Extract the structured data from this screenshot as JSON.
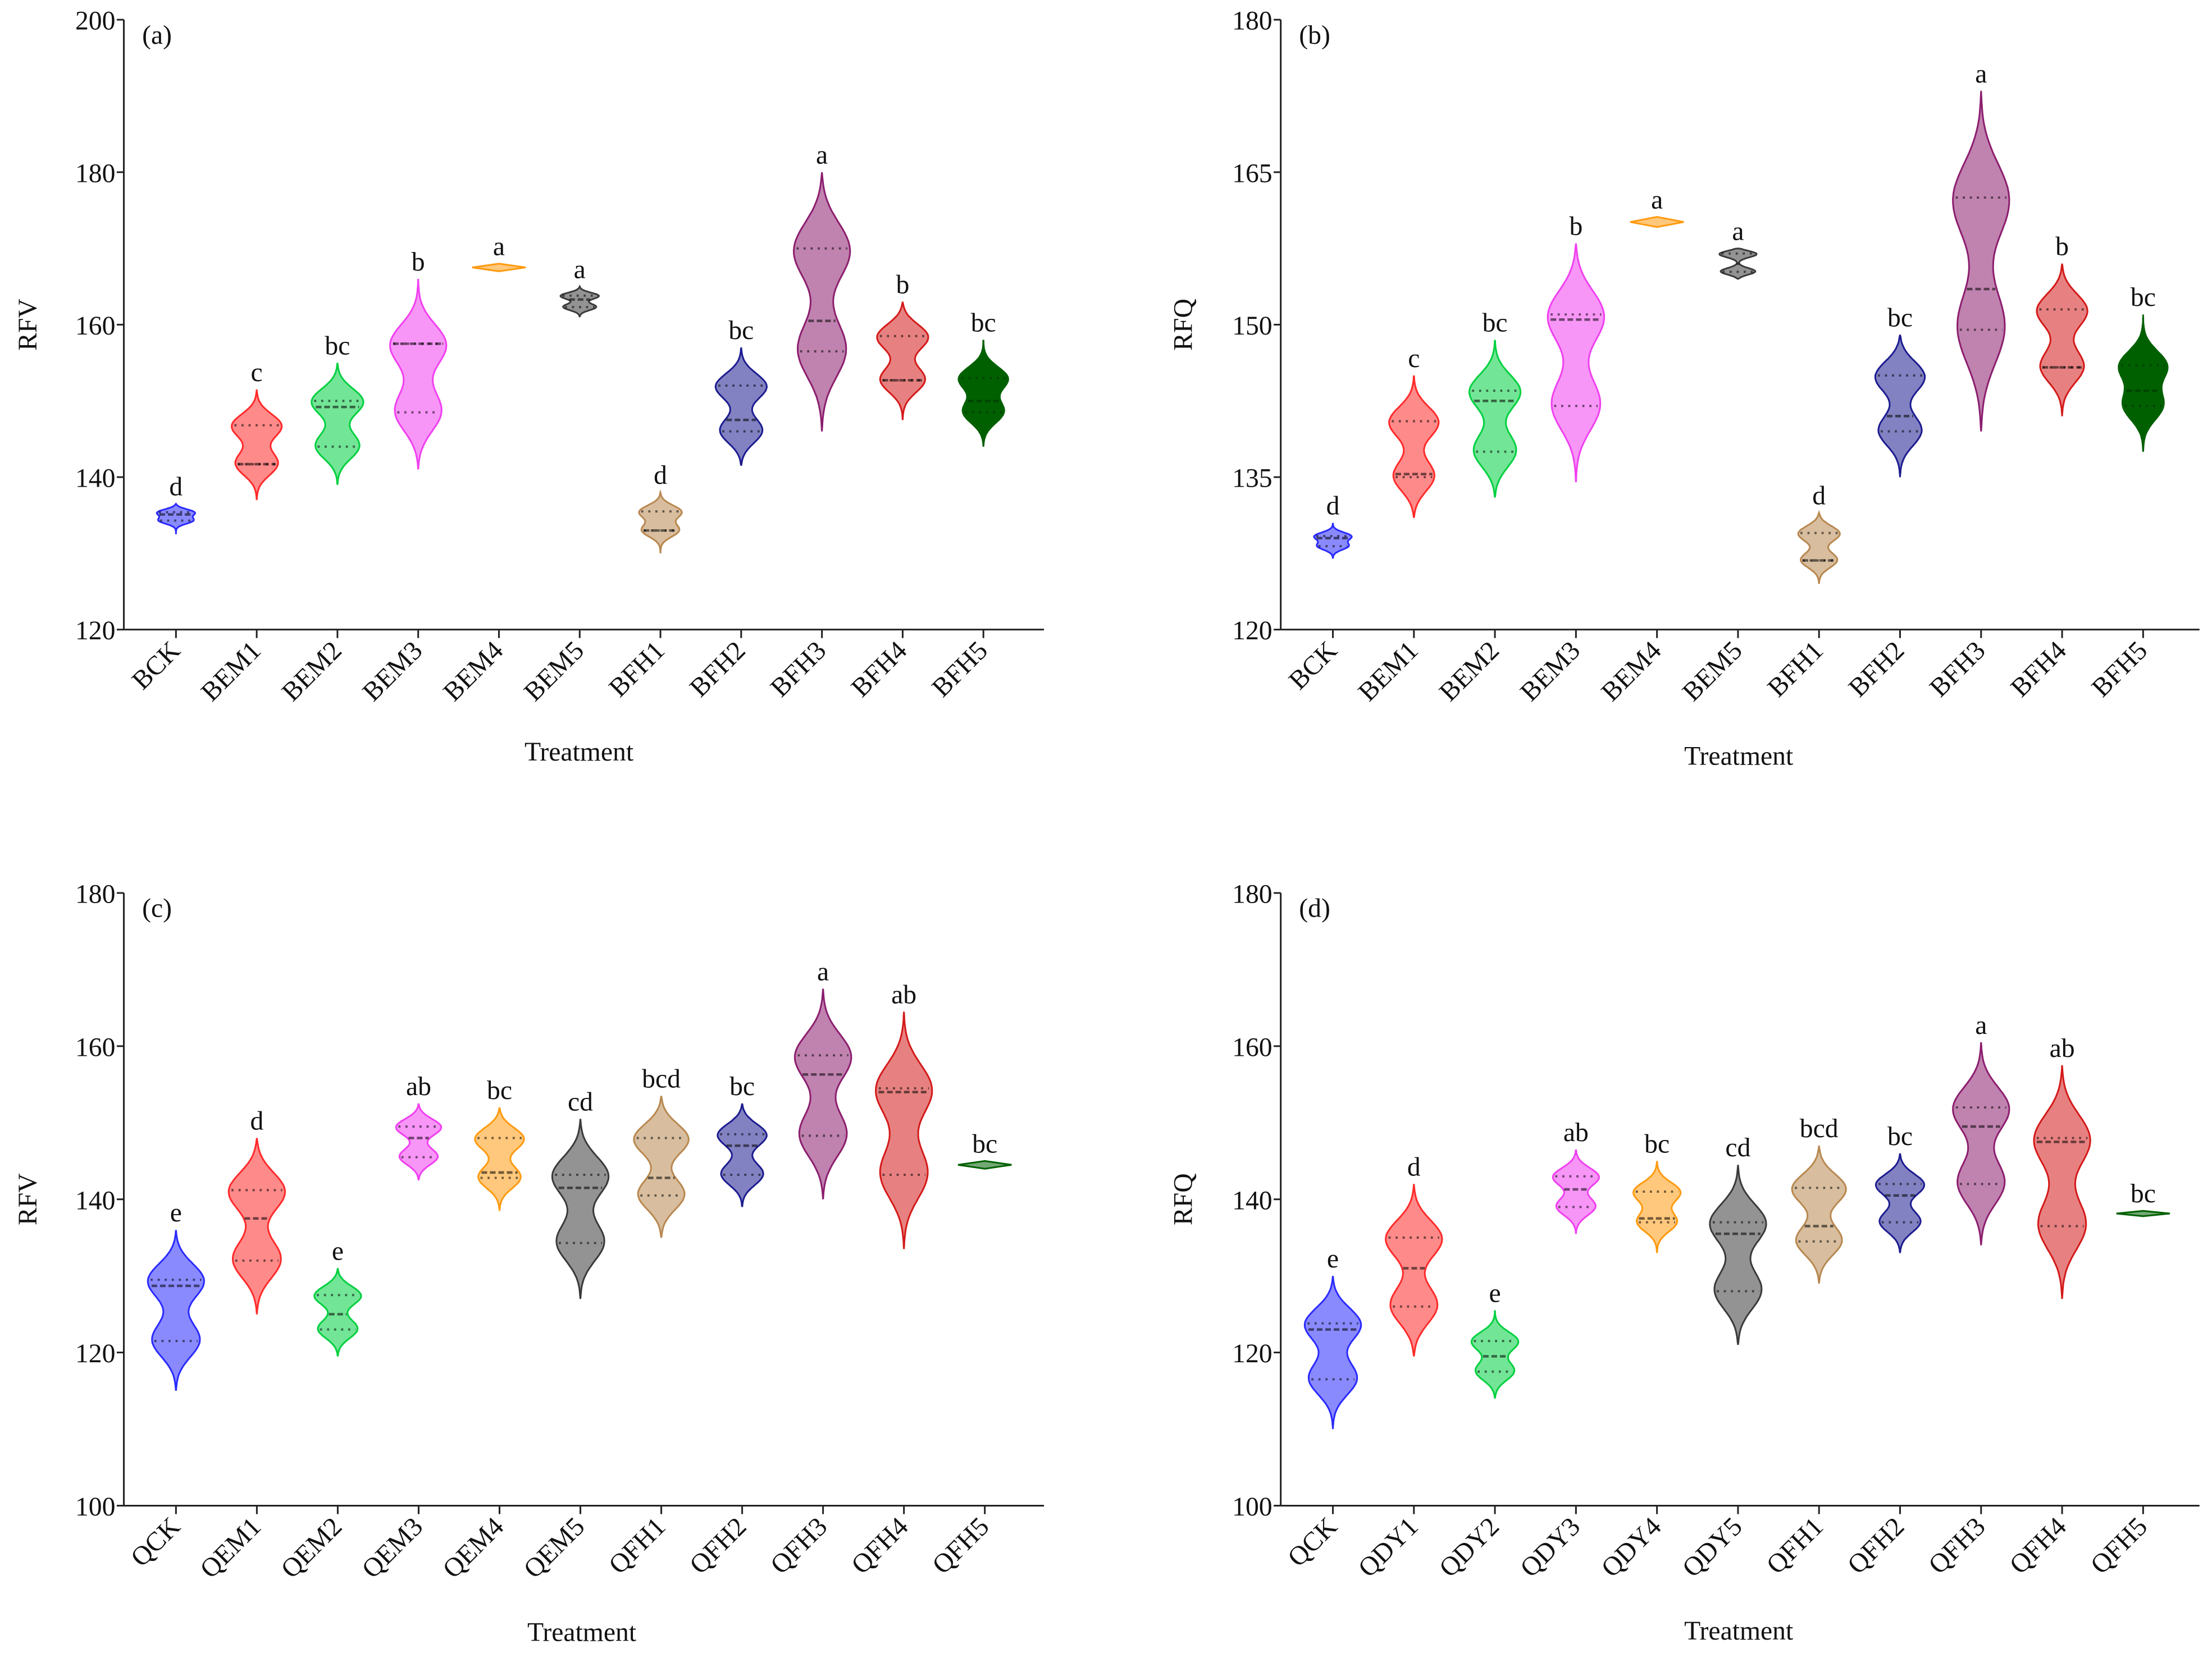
{
  "chart_data": [
    {
      "type": "violin",
      "panel_label": "(a)",
      "ylabel": "RFV",
      "xlabel": "Treatment",
      "ylim": [
        120,
        200
      ],
      "yticks": [
        "120",
        "140",
        "160",
        "180",
        "200"
      ],
      "categories": [
        "BCK",
        "BEM1",
        "BEM2",
        "BEM3",
        "BEM4",
        "BEM5",
        "BFH1",
        "BFH2",
        "BFH3",
        "BFH4",
        "BFH5"
      ],
      "letters": [
        "d",
        "c",
        "bc",
        "b",
        "a",
        "a",
        "d",
        "bc",
        "a",
        "b",
        "bc"
      ],
      "violins": [
        {
          "min": 132.5,
          "max": 136.5,
          "q1": 134.3,
          "median": 135.1,
          "q3": 135.4
        },
        {
          "min": 137,
          "max": 151.5,
          "q1": 141.7,
          "median": 141.7,
          "q3": 146.8
        },
        {
          "min": 139,
          "max": 155,
          "q1": 144,
          "median": 149.2,
          "q3": 150
        },
        {
          "min": 141,
          "max": 166,
          "q1": 148.5,
          "median": 157.5,
          "q3": 157.5
        },
        {
          "min": 167,
          "max": 168,
          "q1": 167.5,
          "median": 167.5,
          "q3": 167.5
        },
        {
          "min": 161,
          "max": 165,
          "q1": 162.3,
          "median": 163.3,
          "q3": 163.8
        },
        {
          "min": 130,
          "max": 138,
          "q1": 133,
          "median": 133,
          "q3": 135.5
        },
        {
          "min": 141.5,
          "max": 157,
          "q1": 146,
          "median": 147.5,
          "q3": 152
        },
        {
          "min": 146,
          "max": 180,
          "q1": 156.5,
          "median": 160.5,
          "q3": 170
        },
        {
          "min": 147.5,
          "max": 163,
          "q1": 152.7,
          "median": 152.7,
          "q3": 158.5
        },
        {
          "min": 144,
          "max": 158,
          "q1": 148.5,
          "median": 150,
          "q3": 153
        }
      ]
    },
    {
      "type": "violin",
      "panel_label": "(b)",
      "ylabel": "RFQ",
      "xlabel": "Treatment",
      "ylim": [
        120,
        180
      ],
      "yticks": [
        "120",
        "135",
        "150",
        "165",
        "180"
      ],
      "categories": [
        "BCK",
        "BEM1",
        "BEM2",
        "BEM3",
        "BEM4",
        "BEM5",
        "BFH1",
        "BFH2",
        "BFH3",
        "BFH4",
        "BFH5"
      ],
      "letters": [
        "d",
        "c",
        "bc",
        "b",
        "a",
        "a",
        "d",
        "bc",
        "a",
        "b",
        "bc"
      ],
      "violins": [
        {
          "min": 127,
          "max": 130.5,
          "q1": 128.2,
          "median": 129,
          "q3": 129.2
        },
        {
          "min": 131,
          "max": 145,
          "q1": 135,
          "median": 135.3,
          "q3": 140.5
        },
        {
          "min": 133,
          "max": 148.5,
          "q1": 137.5,
          "median": 142.5,
          "q3": 143.5
        },
        {
          "min": 134.5,
          "max": 158,
          "q1": 142,
          "median": 150.5,
          "q3": 151
        },
        {
          "min": 159.6,
          "max": 160.6,
          "q1": 160.1,
          "median": 160.1,
          "q3": 160.1
        },
        {
          "min": 154.5,
          "max": 157.5,
          "q1": 155.2,
          "median": 156,
          "q3": 157
        },
        {
          "min": 124.5,
          "max": 131.5,
          "q1": 126.8,
          "median": 126.8,
          "q3": 129.5
        },
        {
          "min": 135,
          "max": 149,
          "q1": 139.5,
          "median": 141,
          "q3": 145
        },
        {
          "min": 139.5,
          "max": 173,
          "q1": 149.5,
          "median": 153.5,
          "q3": 162.5
        },
        {
          "min": 141,
          "max": 156,
          "q1": 145.8,
          "median": 145.8,
          "q3": 151.5
        },
        {
          "min": 137.5,
          "max": 151,
          "q1": 142,
          "median": 143.5,
          "q3": 146
        }
      ]
    },
    {
      "type": "violin",
      "panel_label": "(c)",
      "ylabel": "RFV",
      "xlabel": "Treatment",
      "ylim": [
        100,
        180
      ],
      "yticks": [
        "100",
        "120",
        "140",
        "160",
        "180"
      ],
      "categories": [
        "QCK",
        "QEM1",
        "QEM2",
        "QEM3",
        "QEM4",
        "QEM5",
        "QFH1",
        "QFH2",
        "QFH3",
        "QFH4",
        "QFH5"
      ],
      "letters": [
        "e",
        "d",
        "e",
        "ab",
        "bc",
        "cd",
        "bcd",
        "bc",
        "a",
        "ab",
        "bc"
      ],
      "violins": [
        {
          "min": 115,
          "max": 136,
          "q1": 121.5,
          "median": 128.7,
          "q3": 129.5
        },
        {
          "min": 125,
          "max": 148,
          "q1": 132,
          "median": 137.5,
          "q3": 141.2
        },
        {
          "min": 119.5,
          "max": 131,
          "q1": 123,
          "median": 125,
          "q3": 127.5
        },
        {
          "min": 142.5,
          "max": 152.5,
          "q1": 145.5,
          "median": 148,
          "q3": 149.5
        },
        {
          "min": 138.5,
          "max": 152,
          "q1": 142.8,
          "median": 143.5,
          "q3": 148
        },
        {
          "min": 127,
          "max": 150.5,
          "q1": 134.3,
          "median": 141.5,
          "q3": 143.2
        },
        {
          "min": 135,
          "max": 153.5,
          "q1": 140.5,
          "median": 142.8,
          "q3": 148
        },
        {
          "min": 139,
          "max": 152.5,
          "q1": 143.2,
          "median": 147,
          "q3": 148.5
        },
        {
          "min": 140,
          "max": 167.5,
          "q1": 148.3,
          "median": 156.3,
          "q3": 158.8
        },
        {
          "min": 133.5,
          "max": 164.5,
          "q1": 143.2,
          "median": 154,
          "q3": 154.5
        },
        {
          "min": 144,
          "max": 145,
          "q1": 144.5,
          "median": 144.5,
          "q3": 144.5
        }
      ]
    },
    {
      "type": "violin",
      "panel_label": "(d)",
      "ylabel": "RFQ",
      "xlabel": "Treatment",
      "ylim": [
        100,
        180
      ],
      "yticks": [
        "100",
        "120",
        "140",
        "160",
        "180"
      ],
      "categories": [
        "QCK",
        "QDY1",
        "QDY2",
        "QDY3",
        "QDY4",
        "QDY5",
        "QFH1",
        "QFH2",
        "QFH3",
        "QFH4",
        "QFH5"
      ],
      "letters": [
        "e",
        "d",
        "e",
        "ab",
        "bc",
        "cd",
        "bcd",
        "bc",
        "a",
        "ab",
        "bc"
      ],
      "violins": [
        {
          "min": 110,
          "max": 130,
          "q1": 116.5,
          "median": 123,
          "q3": 123.8
        },
        {
          "min": 119.5,
          "max": 142,
          "q1": 126,
          "median": 131,
          "q3": 135
        },
        {
          "min": 114,
          "max": 125.5,
          "q1": 117.5,
          "median": 119.5,
          "q3": 121.5
        },
        {
          "min": 135.5,
          "max": 146.5,
          "q1": 139,
          "median": 141.3,
          "q3": 143
        },
        {
          "min": 133,
          "max": 145,
          "q1": 137,
          "median": 137.5,
          "q3": 141
        },
        {
          "min": 121,
          "max": 144.5,
          "q1": 128,
          "median": 135.5,
          "q3": 137
        },
        {
          "min": 129,
          "max": 147,
          "q1": 134.5,
          "median": 136.5,
          "q3": 141.5
        },
        {
          "min": 133,
          "max": 146,
          "q1": 137,
          "median": 140.5,
          "q3": 142
        },
        {
          "min": 134,
          "max": 160.5,
          "q1": 142,
          "median": 149.5,
          "q3": 152
        },
        {
          "min": 127,
          "max": 157.5,
          "q1": 136.5,
          "median": 147.5,
          "q3": 148
        },
        {
          "min": 137.8,
          "max": 138.5,
          "q1": 138.1,
          "median": 138.1,
          "q3": 138.1
        }
      ]
    }
  ],
  "colors": [
    "#2a2aff",
    "#ff2a2a",
    "#00d040",
    "#f040f0",
    "#ff9a10",
    "#3a3a3a",
    "#b88850",
    "#1c1c90",
    "#8c1e6e",
    "#d41a1a",
    "#006000"
  ]
}
